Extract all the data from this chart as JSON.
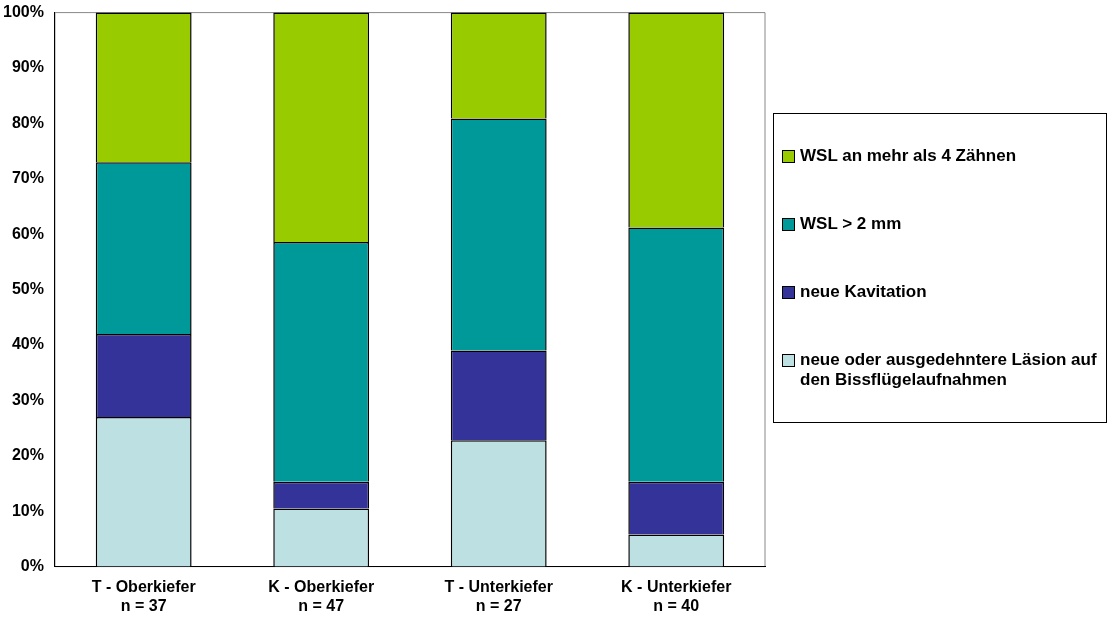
{
  "chart_data": {
    "type": "bar",
    "stacked": true,
    "categories": [
      "T - Oberkiefer\nn = 37",
      "K - Oberkiefer\nn = 47",
      "T - Unterkiefer\nn = 27",
      "K - Unterkiefer\nn = 40"
    ],
    "series": [
      {
        "name": "neue oder ausgedehntere Läsion auf den Bissflügelaufnahmen",
        "color": "#bde0e3",
        "values": [
          27,
          10.5,
          22.8,
          5.8
        ]
      },
      {
        "name": "neue Kavitation",
        "color": "#333399",
        "values": [
          15,
          4.8,
          16.2,
          9.5
        ]
      },
      {
        "name": "WSL > 2 mm",
        "color": "#009999",
        "values": [
          31,
          43.3,
          41.9,
          45.9
        ]
      },
      {
        "name": "WSL an mehr als 4 Zähnen",
        "color": "#99cc00",
        "values": [
          27,
          41.4,
          19.1,
          38.8
        ]
      }
    ],
    "ylim": [
      0,
      100
    ],
    "yticks": [
      {
        "value": 0,
        "label": "0%"
      },
      {
        "value": 10,
        "label": "10%"
      },
      {
        "value": 20,
        "label": "20%"
      },
      {
        "value": 30,
        "label": "30%"
      },
      {
        "value": 40,
        "label": "40%"
      },
      {
        "value": 50,
        "label": "50%"
      },
      {
        "value": 60,
        "label": "60%"
      },
      {
        "value": 70,
        "label": "70%"
      },
      {
        "value": 80,
        "label": "80%"
      },
      {
        "value": 90,
        "label": "90%"
      },
      {
        "value": 100,
        "label": "100%"
      }
    ],
    "grid": false,
    "legend": "right"
  }
}
